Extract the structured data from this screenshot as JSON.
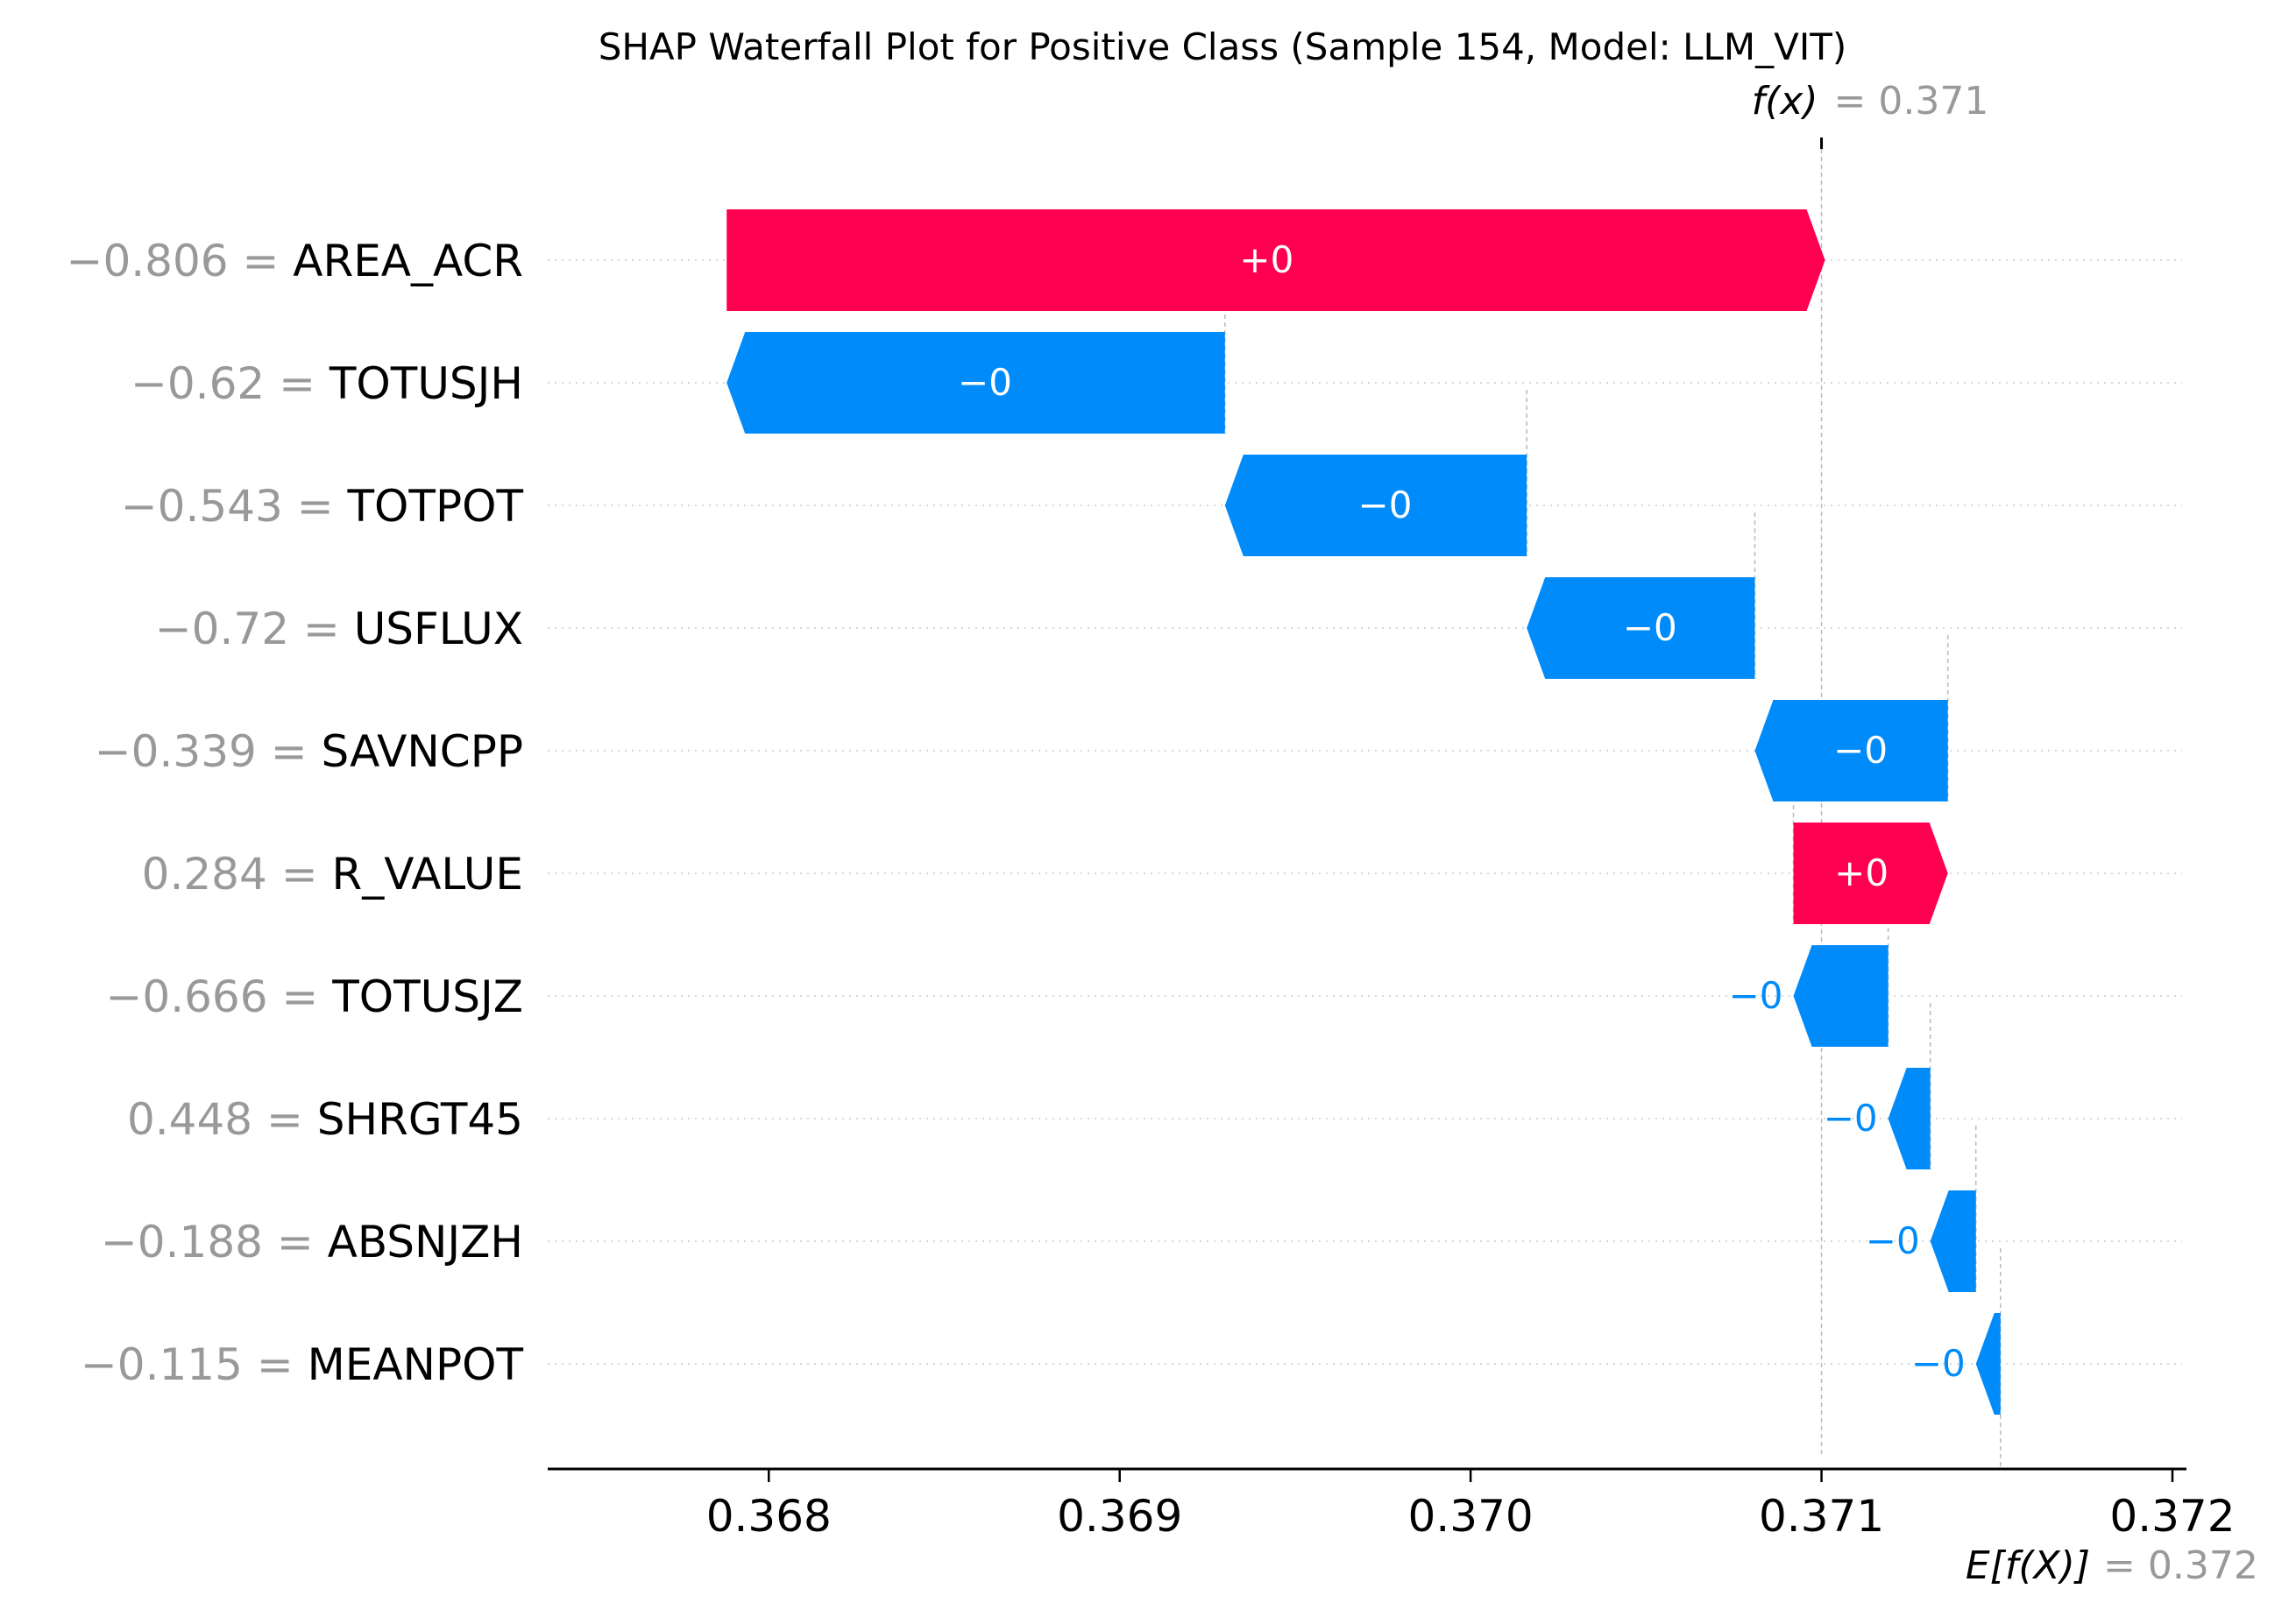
{
  "chart_data": {
    "type": "waterfall",
    "title": "SHAP Waterfall Plot for Positive Class (Sample 154, Model: LLM_VIT)",
    "fx_label": "f(x)",
    "fx_value": 0.371,
    "fx_value_text": "= 0.371",
    "efx_label": "E[f(X)]",
    "efx_value": 0.372,
    "efx_value_text": "= 0.372",
    "xlim": [
      0.36737,
      0.37204
    ],
    "x_ticks": [
      0.368,
      0.369,
      0.37,
      0.371,
      0.372
    ],
    "x_tick_labels": [
      "0.368",
      "0.369",
      "0.370",
      "0.371",
      "0.372"
    ],
    "features": [
      {
        "value": "−0.806",
        "name": "AREA_ACR",
        "start": 0.36788,
        "end": 0.37101,
        "label": "+0",
        "sign": "positive"
      },
      {
        "value": "−0.62",
        "name": "TOTUSJH",
        "start": 0.3693,
        "end": 0.36788,
        "label": "−0",
        "sign": "negative"
      },
      {
        "value": "−0.543",
        "name": "TOTPOT",
        "start": 0.37016,
        "end": 0.3693,
        "label": "−0",
        "sign": "negative"
      },
      {
        "value": "−0.72",
        "name": "USFLUX",
        "start": 0.37081,
        "end": 0.37016,
        "label": "−0",
        "sign": "negative"
      },
      {
        "value": "−0.339",
        "name": "SAVNCPP",
        "start": 0.37136,
        "end": 0.37081,
        "label": "−0",
        "sign": "negative"
      },
      {
        "value": "0.284",
        "name": "R_VALUE",
        "start": 0.37092,
        "end": 0.37136,
        "label": "+0",
        "sign": "positive"
      },
      {
        "value": "−0.666",
        "name": "TOTUSJZ",
        "start": 0.37119,
        "end": 0.37092,
        "label": "−0",
        "sign": "negative"
      },
      {
        "value": "0.448",
        "name": "SHRGT45",
        "start": 0.37131,
        "end": 0.37119,
        "label": "−0",
        "sign": "negative"
      },
      {
        "value": "−0.188",
        "name": "ABSNJZH",
        "start": 0.37144,
        "end": 0.37131,
        "label": "−0",
        "sign": "negative"
      },
      {
        "value": "−0.115",
        "name": "MEANPOT",
        "start": 0.37151,
        "end": 0.37144,
        "label": "−0",
        "sign": "negative"
      }
    ],
    "colors": {
      "positive": "#ff0051",
      "negative": "#008bfb",
      "grid": "#cccccc",
      "guide": "#bbbbbb"
    }
  }
}
